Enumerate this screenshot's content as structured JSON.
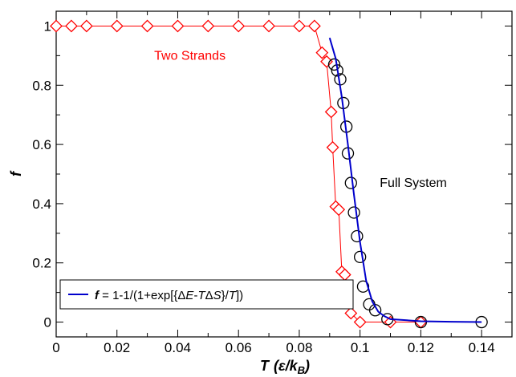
{
  "chart_data": {
    "type": "scatter",
    "xlabel_main": "T",
    "xlabel_unit": "(ε/k",
    "xlabel_sub": "B",
    "xlabel_close": ")",
    "ylabel": "f",
    "xlim": [
      0,
      0.15
    ],
    "ylim": [
      -0.05,
      1.05
    ],
    "xticks": [
      "0",
      "0.02",
      "0.04",
      "0.06",
      "0.08",
      "0.1",
      "0.12",
      "0.14"
    ],
    "xtick_values": [
      0,
      0.02,
      0.04,
      0.06,
      0.08,
      0.1,
      0.12,
      0.14
    ],
    "yticks": [
      "0",
      "0.2",
      "0.4",
      "0.6",
      "0.8",
      "1"
    ],
    "ytick_values": [
      0,
      0.2,
      0.4,
      0.6,
      0.8,
      1.0
    ],
    "series": [
      {
        "name": "Two Strands",
        "color": "#ff0000",
        "marker": "diamond",
        "connected": true,
        "x": [
          0.0,
          0.005,
          0.01,
          0.02,
          0.03,
          0.04,
          0.05,
          0.06,
          0.07,
          0.08,
          0.085,
          0.0875,
          0.089,
          0.0905,
          0.091,
          0.092,
          0.093,
          0.094,
          0.095,
          0.097,
          0.1,
          0.11,
          0.12
        ],
        "y": [
          1.0,
          1.0,
          1.0,
          1.0,
          1.0,
          1.0,
          1.0,
          1.0,
          1.0,
          1.0,
          1.0,
          0.91,
          0.88,
          0.71,
          0.59,
          0.39,
          0.38,
          0.17,
          0.16,
          0.03,
          0.0,
          0.0,
          0.0
        ]
      },
      {
        "name": "Full System",
        "color": "#000000",
        "marker": "circle",
        "connected": false,
        "x": [
          0.0915,
          0.0925,
          0.0935,
          0.0945,
          0.0955,
          0.096,
          0.097,
          0.098,
          0.099,
          0.1,
          0.101,
          0.103,
          0.105,
          0.109,
          0.12,
          0.14
        ],
        "y": [
          0.87,
          0.85,
          0.82,
          0.74,
          0.66,
          0.57,
          0.47,
          0.37,
          0.29,
          0.22,
          0.12,
          0.06,
          0.04,
          0.01,
          0.0,
          0.0
        ]
      },
      {
        "name": "fit",
        "color": "#0000cc",
        "type": "line",
        "x": [
          0.09,
          0.092,
          0.094,
          0.096,
          0.098,
          0.1,
          0.102,
          0.104,
          0.106,
          0.108,
          0.11,
          0.12,
          0.13,
          0.14
        ],
        "y": [
          0.96,
          0.89,
          0.76,
          0.6,
          0.43,
          0.27,
          0.14,
          0.07,
          0.035,
          0.02,
          0.01,
          0.003,
          0.001,
          0.0
        ]
      }
    ],
    "annotations": [
      {
        "text": "Two Strands",
        "color": "#ff0000",
        "x": 0.044,
        "y": 0.9,
        "anchor": "middle"
      },
      {
        "text": "Full System",
        "color": "#000000",
        "x": 0.1065,
        "y": 0.47,
        "anchor": "start"
      }
    ],
    "legend": {
      "position": "bottom-left",
      "line_color": "#0000cc",
      "label_f": "f",
      "label_mid": " = 1-1/(1+exp[{Δ",
      "label_E": "E",
      "label_dash": "-",
      "label_T": "T",
      "label_delta": "Δ",
      "label_S": "S",
      "label_slash": "}/",
      "label_T2": "T",
      "label_end": "])"
    }
  }
}
